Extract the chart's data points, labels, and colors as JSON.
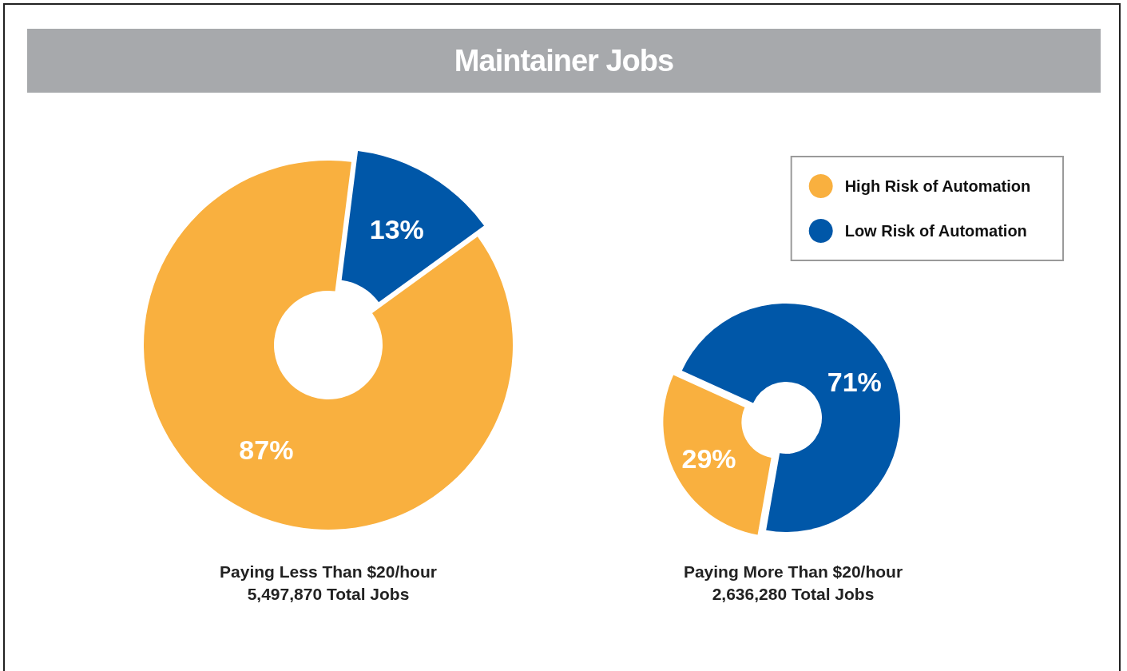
{
  "chart_data": [
    {
      "type": "donut",
      "title": "Maintainer Jobs",
      "categories": [
        null,
        null
      ],
      "values": [
        87,
        13
      ],
      "colors": [
        "#f9b03f",
        "#0057a8"
      ],
      "value_labels": [
        "87%",
        "13%"
      ],
      "annotations": [
        "Paying Less Than $20/hour",
        "5,497,870 Total Jobs"
      ]
    },
    {
      "type": "donut",
      "categories": [
        "High Risk of Automation",
        "Low Risk of Automation"
      ],
      "values": [
        29,
        71
      ],
      "colors": [
        "#f9b03f",
        "#0057a8"
      ],
      "value_labels": [
        "29%",
        "71%"
      ],
      "annotations": [
        "Paying More Than $20/hour",
        "2,636,280 Total Jobs"
      ],
      "legend": "top right"
    }
  ]
}
